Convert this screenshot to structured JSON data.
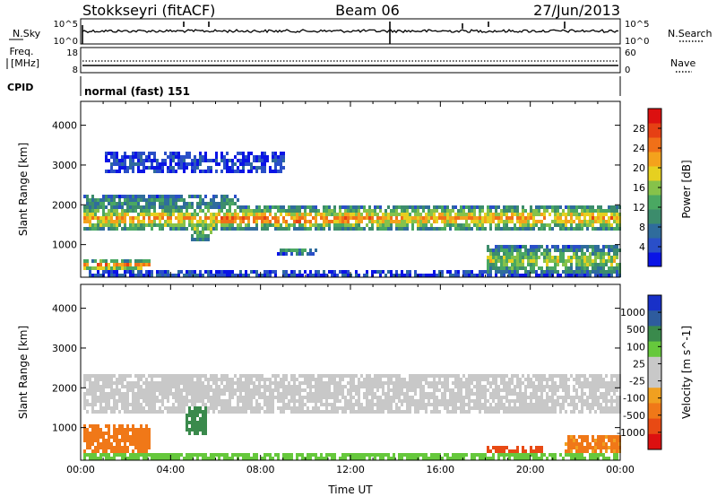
{
  "header": {
    "radar": "Stokkseyri (fitACF)",
    "beam": "Beam 06",
    "date": "27/Jun/2013"
  },
  "top_panels": {
    "nsky": {
      "label": "N.Sky",
      "ticks": [
        "10^5",
        "10^0"
      ]
    },
    "nsearch": {
      "label": "N.Search",
      "ticks": [
        "10^5",
        "10^0"
      ]
    },
    "freq": {
      "label_line1": "Freq.",
      "label_line2": "[MHz]",
      "ticks": [
        "18",
        "8"
      ]
    },
    "nave": {
      "label": "Nave",
      "ticks": [
        "60",
        "0"
      ]
    },
    "cpid": {
      "label": "CPID",
      "value": "normal (fast) 151"
    }
  },
  "chart_data": [
    {
      "type": "heatmap",
      "name": "power",
      "ylabel": "Slant Range [km]",
      "xlabel": "",
      "x_ticks": [
        "00:00",
        "04:00",
        "08:00",
        "12:00",
        "16:00",
        "20:00",
        "00:00"
      ],
      "y_ticks": [
        "1000",
        "2000",
        "3000",
        "4000"
      ],
      "xlim": [
        0,
        24
      ],
      "ylim": [
        180,
        4600
      ],
      "colorbar": {
        "label": "Power [dB]",
        "ticks": [
          "4",
          "8",
          "12",
          "16",
          "20",
          "24",
          "28"
        ],
        "colors": [
          "#0a14e6",
          "#2a4fc8",
          "#2f6c9c",
          "#3c8c6c",
          "#4aa862",
          "#86c24a",
          "#e6d020",
          "#f4a21c",
          "#f07018",
          "#e64014",
          "#dc1010"
        ]
      },
      "regions": [
        {
          "x": [
            0.1,
            24
          ],
          "y": [
            1400,
            2000
          ],
          "level": 0.72
        },
        {
          "x": [
            6,
            12
          ],
          "y": [
            1560,
            1780
          ],
          "level": 0.98
        },
        {
          "x": [
            0.1,
            7
          ],
          "y": [
            1950,
            2300
          ],
          "level": 0.38
        },
        {
          "x": [
            1,
            9
          ],
          "y": [
            2800,
            3400
          ],
          "level": 0.12
        },
        {
          "x": [
            4.8,
            5.8
          ],
          "y": [
            1100,
            1700
          ],
          "level": 0.5
        },
        {
          "x": [
            8.5,
            10.5
          ],
          "y": [
            800,
            950
          ],
          "level": 0.45
        },
        {
          "x": [
            18,
            24
          ],
          "y": [
            300,
            1000
          ],
          "level": 0.55
        },
        {
          "x": [
            0.1,
            3
          ],
          "y": [
            400,
            650
          ],
          "level": 0.82
        },
        {
          "x": [
            0.1,
            24
          ],
          "y": [
            180,
            400
          ],
          "level": 0.15
        }
      ]
    },
    {
      "type": "heatmap",
      "name": "velocity",
      "ylabel": "Slant Range [km]",
      "xlabel": "Time UT",
      "x_ticks": [
        "00:00",
        "04:00",
        "08:00",
        "12:00",
        "16:00",
        "20:00",
        "00:00"
      ],
      "y_ticks": [
        "1000",
        "2000",
        "3000",
        "4000"
      ],
      "xlim": [
        0,
        24
      ],
      "ylim": [
        180,
        4600
      ],
      "colorbar": {
        "label": "Velocity [m s^-1]",
        "ticks": [
          "1000",
          "500",
          "100",
          "25",
          "-25",
          "-100",
          "-500",
          "-1000"
        ],
        "colors": [
          "#1830c8",
          "#2e5c9e",
          "#3a8a4c",
          "#66c83c",
          "#c8c8c8",
          "#c8c8c8",
          "#f0a020",
          "#f07818",
          "#e84a14",
          "#dc1010"
        ]
      },
      "regions": [
        {
          "x": [
            0.1,
            24
          ],
          "y": [
            1400,
            2400
          ],
          "velocity": 0
        },
        {
          "x": [
            4.6,
            5.6
          ],
          "y": [
            900,
            1600
          ],
          "velocity": 400
        },
        {
          "x": [
            0.1,
            3
          ],
          "y": [
            400,
            1100
          ],
          "velocity": -350
        },
        {
          "x": [
            18,
            20.5
          ],
          "y": [
            420,
            560
          ],
          "velocity": -700
        },
        {
          "x": [
            21.5,
            24
          ],
          "y": [
            300,
            900
          ],
          "velocity": -200
        },
        {
          "x": [
            0.1,
            24
          ],
          "y": [
            180,
            400
          ],
          "velocity": 80
        }
      ]
    }
  ],
  "colors": {
    "axis": "#000000",
    "background": "#ffffff"
  }
}
